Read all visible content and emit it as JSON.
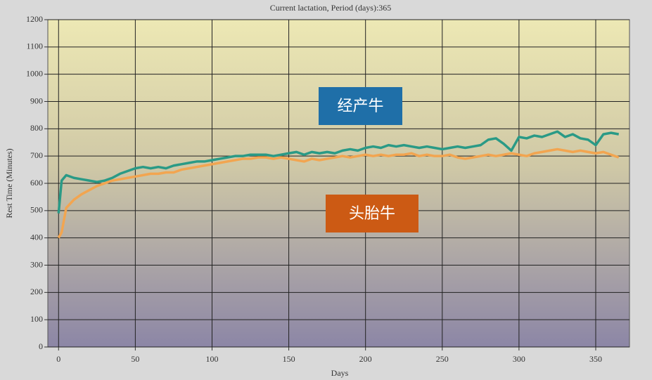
{
  "chart_data": {
    "type": "line",
    "subtitle": "Current lactation, Period (days):365",
    "x_label": "Days",
    "y_label": "Rest Time (Minutes)",
    "x": [
      0,
      2,
      5,
      10,
      15,
      20,
      25,
      30,
      35,
      40,
      45,
      50,
      55,
      60,
      65,
      70,
      75,
      80,
      85,
      90,
      95,
      100,
      105,
      110,
      115,
      120,
      125,
      130,
      135,
      140,
      145,
      150,
      155,
      160,
      165,
      170,
      175,
      180,
      185,
      190,
      195,
      200,
      205,
      210,
      215,
      220,
      225,
      230,
      235,
      240,
      245,
      250,
      255,
      260,
      265,
      270,
      275,
      280,
      285,
      290,
      295,
      300,
      305,
      310,
      315,
      320,
      325,
      330,
      335,
      340,
      345,
      350,
      355,
      360,
      365
    ],
    "series": [
      {
        "name": "经产牛",
        "color": "#2a9a86",
        "label_box_color": "#1f6fa8",
        "values": [
          490,
          610,
          630,
          620,
          615,
          610,
          605,
          610,
          620,
          635,
          645,
          655,
          660,
          655,
          660,
          655,
          665,
          670,
          675,
          680,
          680,
          685,
          690,
          695,
          700,
          700,
          705,
          705,
          705,
          700,
          705,
          710,
          715,
          705,
          715,
          710,
          715,
          710,
          720,
          725,
          720,
          730,
          735,
          730,
          740,
          735,
          740,
          735,
          730,
          735,
          730,
          725,
          730,
          735,
          730,
          735,
          740,
          760,
          765,
          745,
          720,
          770,
          765,
          775,
          770,
          780,
          790,
          770,
          780,
          765,
          760,
          740,
          780,
          785,
          780
        ]
      },
      {
        "name": "头胎牛",
        "color": "#f2a550",
        "label_box_color": "#cc5a14",
        "values": [
          400,
          420,
          510,
          540,
          560,
          575,
          590,
          600,
          610,
          615,
          620,
          625,
          630,
          635,
          635,
          640,
          640,
          650,
          655,
          660,
          665,
          670,
          675,
          680,
          685,
          690,
          690,
          695,
          695,
          690,
          695,
          690,
          685,
          680,
          690,
          685,
          690,
          695,
          700,
          695,
          700,
          705,
          700,
          705,
          700,
          705,
          705,
          710,
          700,
          705,
          700,
          700,
          705,
          695,
          690,
          695,
          700,
          705,
          700,
          705,
          710,
          705,
          700,
          710,
          715,
          720,
          725,
          720,
          715,
          720,
          715,
          710,
          715,
          705,
          695
        ]
      }
    ],
    "xlim": [
      -7,
      372
    ],
    "ylim": [
      0,
      1200
    ],
    "xticks": [
      0,
      50,
      100,
      150,
      200,
      250,
      300,
      350
    ],
    "yticks": [
      0,
      100,
      200,
      300,
      400,
      500,
      600,
      700,
      800,
      900,
      1000,
      1100,
      1200
    ],
    "grid": true
  }
}
